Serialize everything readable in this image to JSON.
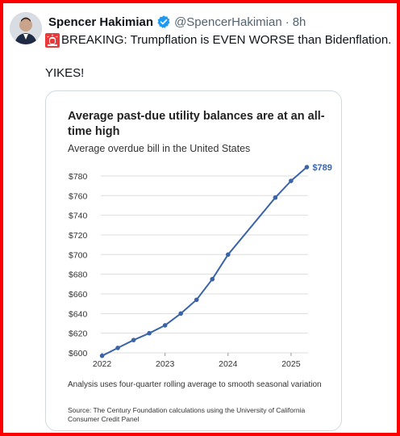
{
  "tweet": {
    "author_name": "Spencer Hakimian",
    "handle": "@SpencerHakimian",
    "separator": "·",
    "time": "8h",
    "text_line1": "BREAKING: Trumpflation is EVEN WORSE than Bidenflation.",
    "text_line2": "YIKES!"
  },
  "icons": {
    "verified": "verified-badge-icon",
    "siren": "siren-emoji-icon",
    "avatar": "avatar"
  },
  "colors": {
    "line": "#3b64a8",
    "verified": "#1d9bf0",
    "border": "#ff0000"
  },
  "chart_data": {
    "type": "line",
    "title": "Average past-due utility balances are at an all-time high",
    "subtitle": "Average overdue bill in the United States",
    "end_label": "$789",
    "x": [
      2022.0,
      2022.25,
      2022.5,
      2022.75,
      2023.0,
      2023.25,
      2023.5,
      2023.75,
      2024.0,
      2024.75,
      2025.0,
      2025.25
    ],
    "values": [
      597,
      605,
      613,
      620,
      628,
      640,
      654,
      675,
      700,
      758,
      775,
      789
    ],
    "xlim": [
      2021.98,
      2025.27
    ],
    "ylim": [
      600,
      789
    ],
    "xticks": [
      "2022",
      "2023",
      "2024",
      "2025"
    ],
    "xtick_values": [
      2022,
      2023,
      2024,
      2025
    ],
    "yticks": [
      "$600",
      "$620",
      "$640",
      "$660",
      "$680",
      "$700",
      "$720",
      "$740",
      "$760",
      "$780"
    ],
    "ytick_values": [
      600,
      620,
      640,
      660,
      680,
      700,
      720,
      740,
      760,
      780
    ],
    "grid": true,
    "note": "Analysis uses four-quarter rolling average to smooth seasonal variation",
    "source": "Source: The Century Foundation calculations using the University of California Consumer Credit Panel"
  }
}
